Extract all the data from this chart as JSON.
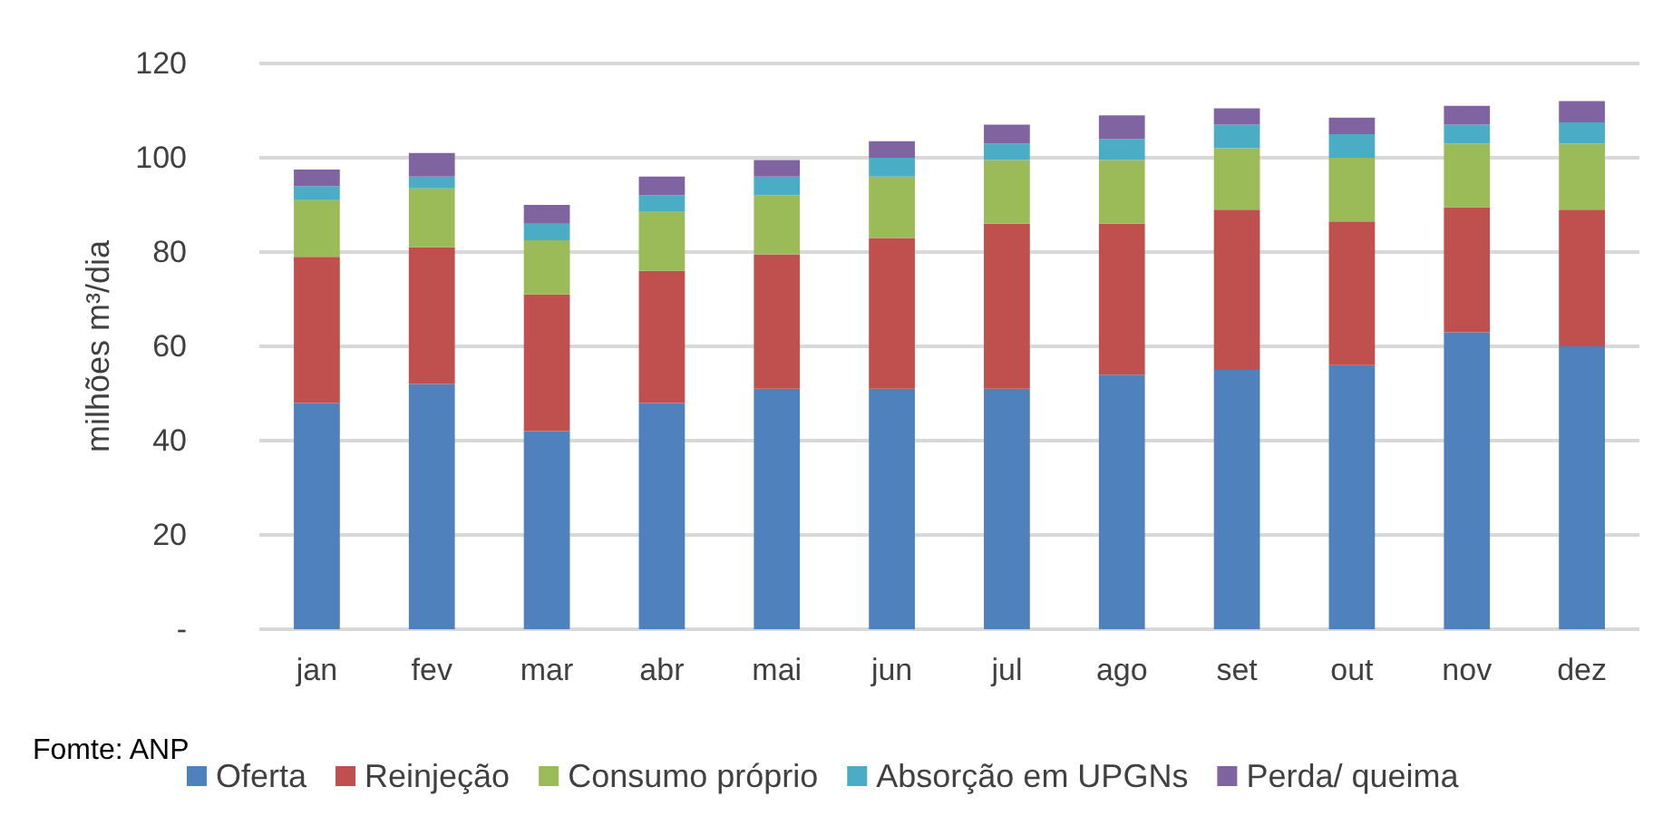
{
  "chart_data": {
    "type": "bar",
    "stacked": true,
    "ylabel": "milhões m³/dia",
    "annotations": [
      "Fomte: ANP"
    ],
    "categories": [
      "jan",
      "fev",
      "mar",
      "abr",
      "mai",
      "jun",
      "jul",
      "ago",
      "set",
      "out",
      "nov",
      "dez"
    ],
    "series": [
      {
        "name": "Oferta",
        "color": "#4f81bd",
        "values": [
          48,
          52,
          42,
          48,
          51,
          51,
          51,
          54,
          55,
          56,
          63,
          60
        ]
      },
      {
        "name": "Reinjeção",
        "color": "#c0504d",
        "values": [
          31,
          29,
          29,
          28,
          28.5,
          32,
          35,
          32,
          34,
          30.5,
          26.5,
          29
        ]
      },
      {
        "name": "Consumo próprio",
        "color": "#9bbb59",
        "values": [
          12,
          12.5,
          11.5,
          12.5,
          12.5,
          13,
          13.5,
          13.5,
          13,
          13.5,
          13.5,
          14
        ]
      },
      {
        "name": "Absorção em UPGNs",
        "color": "#4bacc6",
        "values": [
          3,
          2.5,
          3.5,
          3.5,
          4,
          4,
          3.5,
          4.5,
          5,
          5,
          4,
          4.5
        ]
      },
      {
        "name": "Perda/ queima",
        "color": "#8064a2",
        "values": [
          3.5,
          5,
          4,
          4,
          3.5,
          3.5,
          4,
          5,
          3.5,
          3.5,
          4,
          4.5
        ]
      }
    ],
    "ylim": [
      0,
      120
    ],
    "yticks": [
      {
        "value": 0,
        "label": "-"
      },
      20,
      40,
      60,
      80,
      100,
      120
    ],
    "grid": "y",
    "legend": "bottom"
  }
}
